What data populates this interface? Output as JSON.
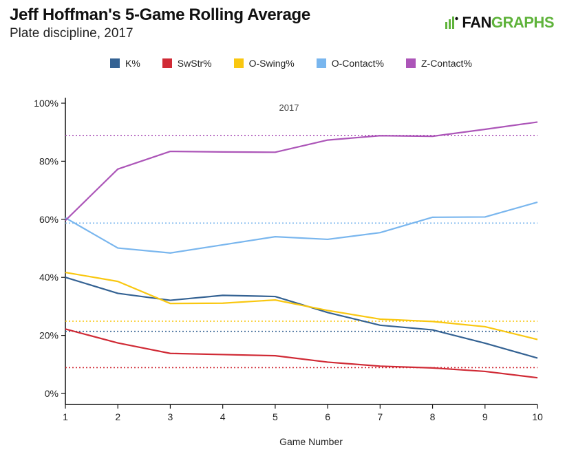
{
  "header": {
    "title": "Jeff Hoffman's 5-Game Rolling Average",
    "subtitle": "Plate discipline, 2017",
    "logo_text_a": "FAN",
    "logo_text_b": "GRAPHS"
  },
  "chart_data": {
    "type": "line",
    "annotation": "2017",
    "xlabel": "Game Number",
    "ylabel": "",
    "x": [
      1,
      2,
      3,
      4,
      5,
      6,
      7,
      8,
      9,
      10
    ],
    "xlim": [
      1,
      10
    ],
    "ylim": [
      0,
      100
    ],
    "yticks": [
      0,
      20,
      40,
      60,
      80,
      100
    ],
    "ytick_labels": [
      "0%",
      "20%",
      "40%",
      "60%",
      "80%",
      "100%"
    ],
    "xtick_labels": [
      "1",
      "2",
      "3",
      "4",
      "5",
      "6",
      "7",
      "8",
      "9",
      "10"
    ],
    "grid": false,
    "legend_position": "top",
    "series": [
      {
        "name": "K%",
        "color": "#346293",
        "values": [
          40.0,
          34.5,
          32.1,
          33.8,
          33.4,
          27.9,
          23.5,
          21.9,
          17.3,
          12.2
        ],
        "reference": 21.4
      },
      {
        "name": "SwStr%",
        "color": "#d02a35",
        "values": [
          22.2,
          17.4,
          13.8,
          13.4,
          13.0,
          10.8,
          9.4,
          8.8,
          7.6,
          5.4
        ],
        "reference": 8.9
      },
      {
        "name": "O-Swing%",
        "color": "#f9c710",
        "values": [
          41.7,
          38.6,
          31.0,
          31.1,
          32.2,
          28.6,
          25.6,
          24.8,
          23.0,
          18.6
        ],
        "reference": 24.9
      },
      {
        "name": "O-Contact%",
        "color": "#79b6ee",
        "values": [
          60.5,
          50.1,
          48.4,
          51.2,
          54.0,
          53.1,
          55.4,
          60.7,
          60.8,
          65.9
        ],
        "reference": 58.7
      },
      {
        "name": "Z-Contact%",
        "color": "#ac55b8",
        "values": [
          59.6,
          77.3,
          83.4,
          83.2,
          83.1,
          87.3,
          88.8,
          88.6,
          91.0,
          93.5
        ],
        "reference": 88.9
      }
    ]
  }
}
